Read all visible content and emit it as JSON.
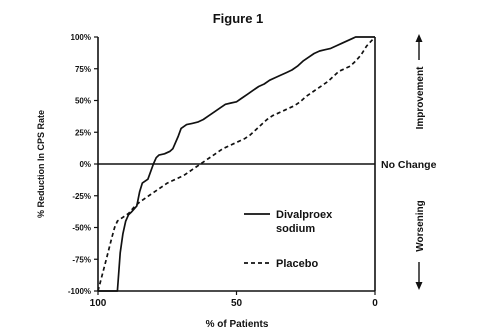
{
  "chart_data": {
    "type": "line",
    "title": "Figure 1",
    "xlabel": "% of Patients",
    "ylabel": "% Reduction In CPS Rate",
    "xlim": [
      100,
      0
    ],
    "ylim": [
      -100,
      100
    ],
    "x_ticks": [
      "100",
      "50",
      "0"
    ],
    "y_ticks": [
      "100%",
      "75%",
      "50%",
      "25%",
      "0%",
      "-25%",
      "-50%",
      "-75%",
      "-100%"
    ],
    "reference_line": {
      "y": 0,
      "label": "No Change"
    },
    "side_labels": {
      "top": "Improvement",
      "bottom": "Worsening"
    },
    "series": [
      {
        "name": "Divalproex sodium",
        "style": "solid",
        "x": [
          100,
          93,
          92,
          91,
          90,
          89,
          88,
          86,
          85,
          84,
          82,
          80,
          79,
          78,
          76,
          74,
          73,
          71,
          70,
          68,
          66,
          64,
          62,
          60,
          58,
          56,
          54,
          52,
          50,
          48,
          46,
          44,
          42,
          40,
          38,
          36,
          34,
          32,
          30,
          28,
          26,
          24,
          22,
          20,
          18,
          16,
          14,
          12,
          10,
          8,
          7,
          6,
          0
        ],
        "y": [
          -100,
          -100,
          -70,
          -55,
          -45,
          -40,
          -38,
          -33,
          -22,
          -15,
          -12,
          0,
          5,
          7,
          8,
          10,
          12,
          22,
          28,
          31,
          32,
          33,
          35,
          38,
          41,
          44,
          47,
          48,
          49,
          52,
          55,
          58,
          61,
          63,
          66,
          68,
          70,
          72,
          74,
          77,
          81,
          84,
          87,
          89,
          90,
          91,
          93,
          95,
          97,
          99,
          100,
          100,
          100
        ]
      },
      {
        "name": "Placebo",
        "style": "dashed",
        "x": [
          100,
          97,
          95,
          94,
          93,
          91,
          89,
          87,
          85,
          83,
          81,
          79,
          77,
          75,
          73,
          71,
          69,
          67,
          65,
          63,
          61,
          59,
          57,
          55,
          53,
          51,
          49,
          47,
          45,
          43,
          41,
          39,
          37,
          35,
          33,
          31,
          29,
          27,
          25,
          23,
          21,
          19,
          17,
          15,
          13,
          11,
          9,
          7,
          5,
          3,
          0
        ],
        "y": [
          -100,
          -75,
          -58,
          -50,
          -45,
          -42,
          -39,
          -34,
          -30,
          -27,
          -24,
          -21,
          -18,
          -15,
          -13,
          -11,
          -9,
          -6,
          -3,
          0,
          3,
          6,
          9,
          12,
          14,
          16,
          18,
          20,
          23,
          27,
          31,
          35,
          38,
          40,
          42,
          44,
          46,
          49,
          53,
          56,
          59,
          62,
          65,
          69,
          73,
          75,
          77,
          81,
          86,
          93,
          100
        ]
      }
    ],
    "legend_position": "lower-right inside plot"
  }
}
